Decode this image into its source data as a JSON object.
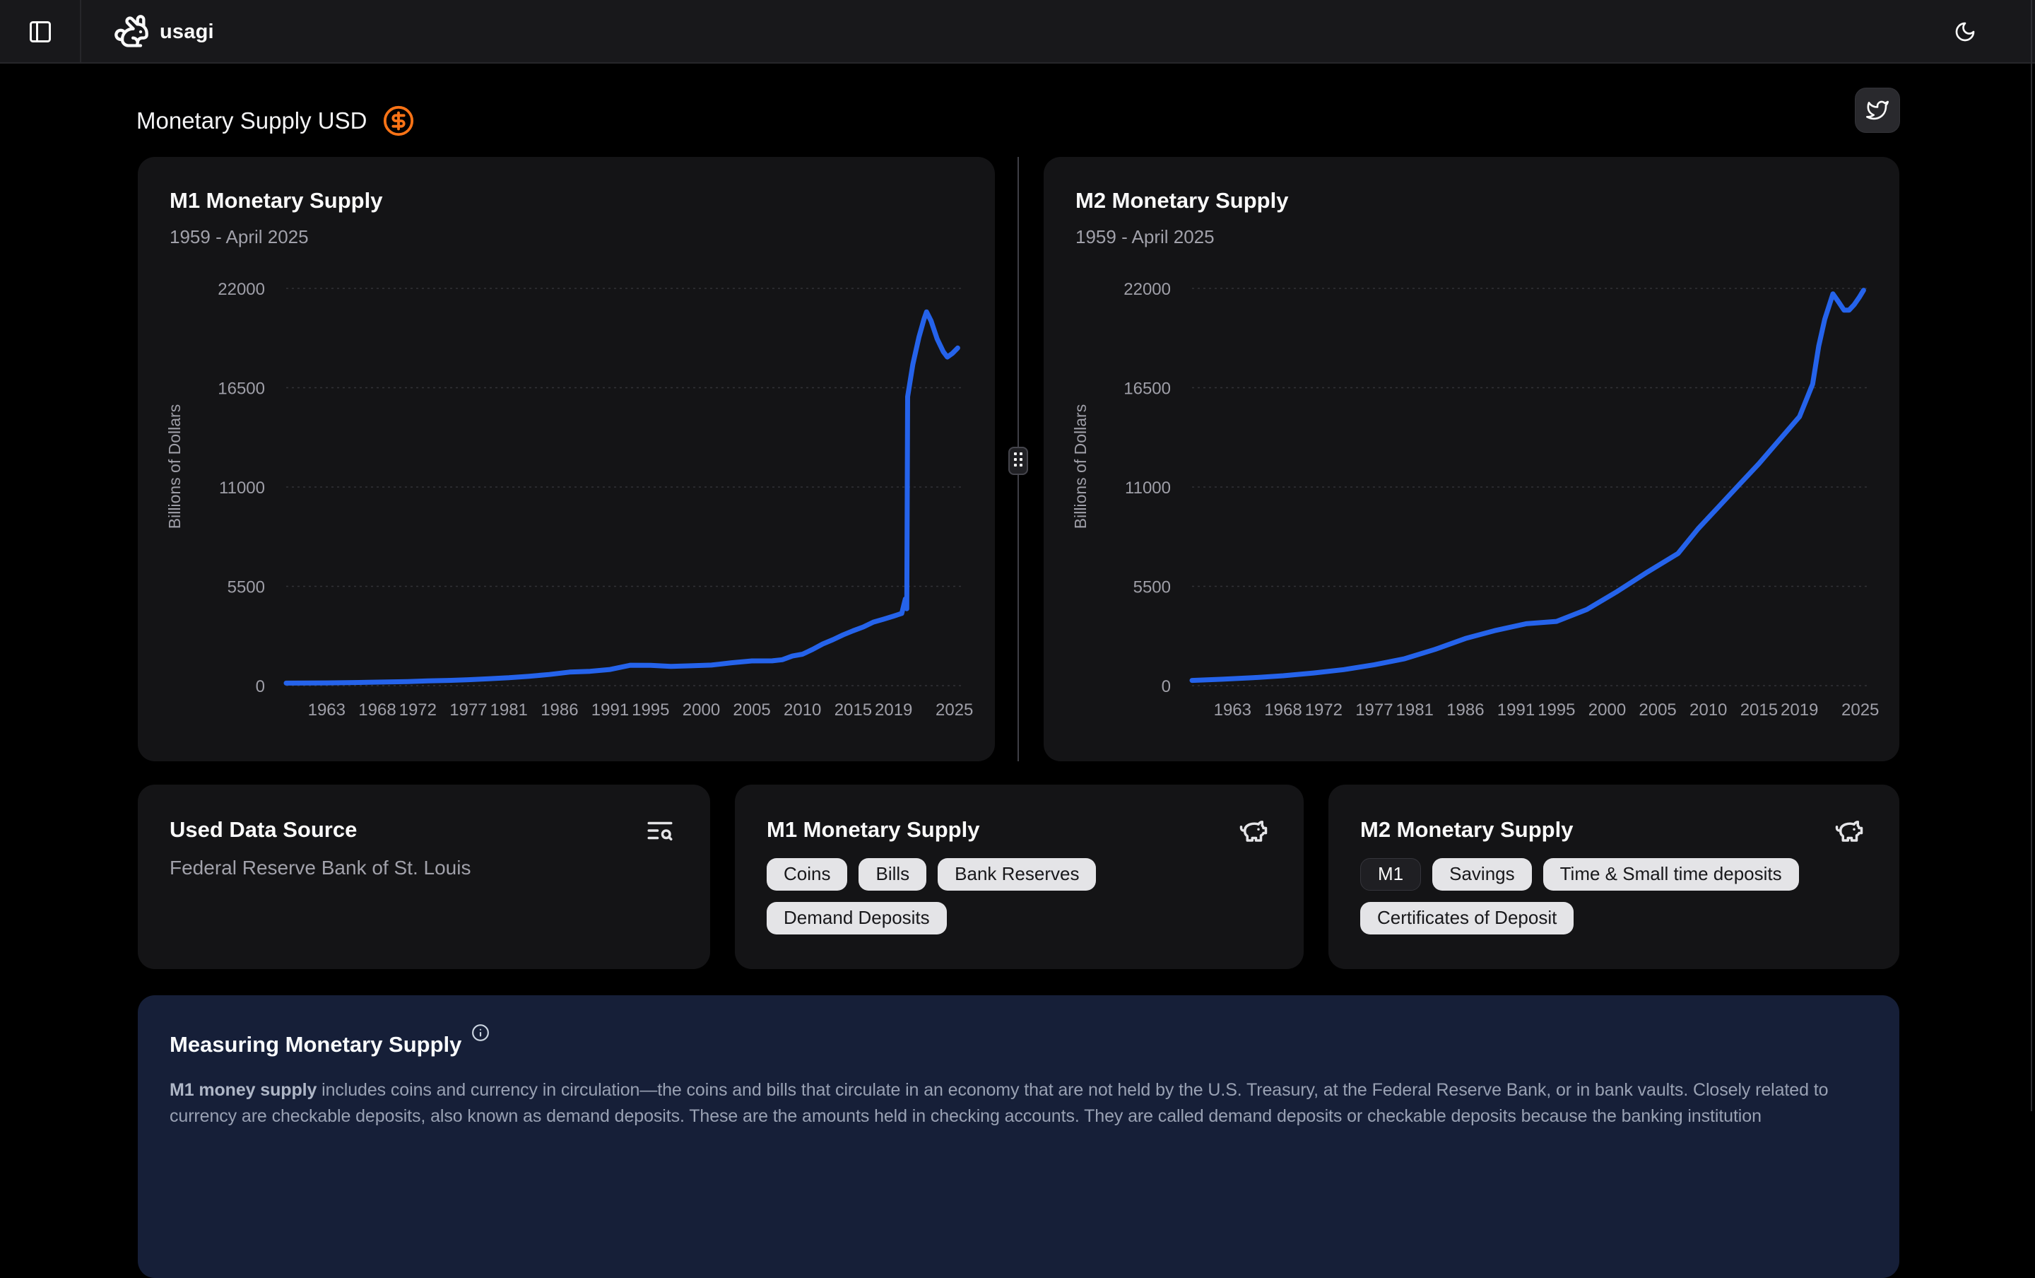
{
  "topbar": {
    "logo_text": "usagi"
  },
  "header": {
    "title": "Monetary Supply USD"
  },
  "charts": [
    {
      "title": "M1 Monetary Supply",
      "subtitle": "1959 - April 2025"
    },
    {
      "title": "M2 Monetary Supply",
      "subtitle": "1959 - April 2025"
    }
  ],
  "chart_data": [
    {
      "type": "line",
      "title": "M1 Monetary Supply",
      "subtitle": "1959 - April 2025",
      "ylabel": "Billions of Dollars",
      "yticks": [
        0,
        5500,
        11000,
        16500,
        22000
      ],
      "xticks": [
        1963,
        1968,
        1972,
        1977,
        1981,
        1986,
        1991,
        1995,
        2000,
        2005,
        2010,
        2015,
        2019,
        2025
      ],
      "x_range": [
        1959,
        2026
      ],
      "y_range": [
        0,
        22000
      ],
      "grid": true,
      "legend": "none",
      "line_color": "#2563eb",
      "series": [
        [
          1959,
          141
        ],
        [
          1961,
          146
        ],
        [
          1963,
          154
        ],
        [
          1965,
          168
        ],
        [
          1967,
          184
        ],
        [
          1969,
          204
        ],
        [
          1971,
          228
        ],
        [
          1973,
          263
        ],
        [
          1975,
          288
        ],
        [
          1977,
          330
        ],
        [
          1979,
          382
        ],
        [
          1981,
          437
        ],
        [
          1983,
          522
        ],
        [
          1985,
          620
        ],
        [
          1987,
          750
        ],
        [
          1989,
          794
        ],
        [
          1991,
          898
        ],
        [
          1993,
          1130
        ],
        [
          1995,
          1127
        ],
        [
          1997,
          1070
        ],
        [
          1999,
          1100
        ],
        [
          2001,
          1140
        ],
        [
          2003,
          1270
        ],
        [
          2005,
          1370
        ],
        [
          2007,
          1375
        ],
        [
          2008,
          1435
        ],
        [
          2009,
          1640
        ],
        [
          2010,
          1742
        ],
        [
          2011,
          2010
        ],
        [
          2012,
          2310
        ],
        [
          2013,
          2545
        ],
        [
          2014,
          2810
        ],
        [
          2015,
          3040
        ],
        [
          2016,
          3250
        ],
        [
          2017,
          3520
        ],
        [
          2018,
          3680
        ],
        [
          2019,
          3850
        ],
        [
          2019.8,
          4000
        ],
        [
          2020.15,
          4800
        ],
        [
          2020.3,
          4260
        ],
        [
          2020.38,
          16000
        ],
        [
          2020.9,
          17800
        ],
        [
          2021.5,
          19300
        ],
        [
          2022.0,
          20300
        ],
        [
          2022.25,
          20700
        ],
        [
          2022.7,
          20200
        ],
        [
          2023.3,
          19200
        ],
        [
          2023.9,
          18500
        ],
        [
          2024.3,
          18200
        ],
        [
          2024.8,
          18400
        ],
        [
          2025.33,
          18700
        ]
      ]
    },
    {
      "type": "line",
      "title": "M2 Monetary Supply",
      "subtitle": "1959 - April 2025",
      "ylabel": "Billions of Dollars",
      "yticks": [
        0,
        5500,
        11000,
        16500,
        22000
      ],
      "xticks": [
        1963,
        1968,
        1972,
        1977,
        1981,
        1986,
        1991,
        1995,
        2000,
        2005,
        2010,
        2015,
        2019,
        2025
      ],
      "x_range": [
        1959,
        2026
      ],
      "y_range": [
        0,
        22000
      ],
      "grid": true,
      "legend": "none",
      "line_color": "#2563eb",
      "series": [
        [
          1959,
          290
        ],
        [
          1962,
          355
        ],
        [
          1965,
          440
        ],
        [
          1968,
          550
        ],
        [
          1971,
          700
        ],
        [
          1974,
          890
        ],
        [
          1977,
          1160
        ],
        [
          1980,
          1490
        ],
        [
          1983,
          2010
        ],
        [
          1986,
          2610
        ],
        [
          1989,
          3060
        ],
        [
          1992,
          3430
        ],
        [
          1995,
          3560
        ],
        [
          1998,
          4220
        ],
        [
          2001,
          5220
        ],
        [
          2004,
          6300
        ],
        [
          2007,
          7320
        ],
        [
          2009,
          8700
        ],
        [
          2011,
          9900
        ],
        [
          2013,
          11100
        ],
        [
          2015,
          12300
        ],
        [
          2017,
          13600
        ],
        [
          2019,
          14900
        ],
        [
          2020.3,
          16700
        ],
        [
          2020.9,
          18800
        ],
        [
          2021.5,
          20300
        ],
        [
          2022.3,
          21700
        ],
        [
          2022.8,
          21300
        ],
        [
          2023.4,
          20800
        ],
        [
          2023.9,
          20800
        ],
        [
          2024.4,
          21100
        ],
        [
          2024.9,
          21500
        ],
        [
          2025.33,
          21900
        ]
      ]
    }
  ],
  "cards": {
    "source": {
      "title": "Used Data Source",
      "value": "Federal Reserve Bank of St. Louis"
    },
    "m1_components": {
      "title": "M1 Monetary Supply",
      "tags": [
        "Coins",
        "Bills",
        "Bank Reserves",
        "Demand Deposits"
      ]
    },
    "m2_components": {
      "title": "M2 Monetary Supply",
      "tags": [
        "M1",
        "Savings",
        "Time & Small time deposits",
        "Certificates of Deposit"
      ]
    }
  },
  "measure_panel": {
    "title": "Measuring Monetary Supply",
    "lead": "M1 money supply",
    "body": "includes coins and currency in circulation—the coins and bills that circulate in an economy that are not held by the U.S. Treasury, at the Federal Reserve Bank, or in bank vaults. Closely related to currency are checkable deposits, also known as demand deposits. These are the amounts held in checking accounts. They are called demand deposits or checkable deposits because the banking institution"
  },
  "colors": {
    "accent_blue": "#2563eb",
    "accent_orange": "#f97316"
  }
}
